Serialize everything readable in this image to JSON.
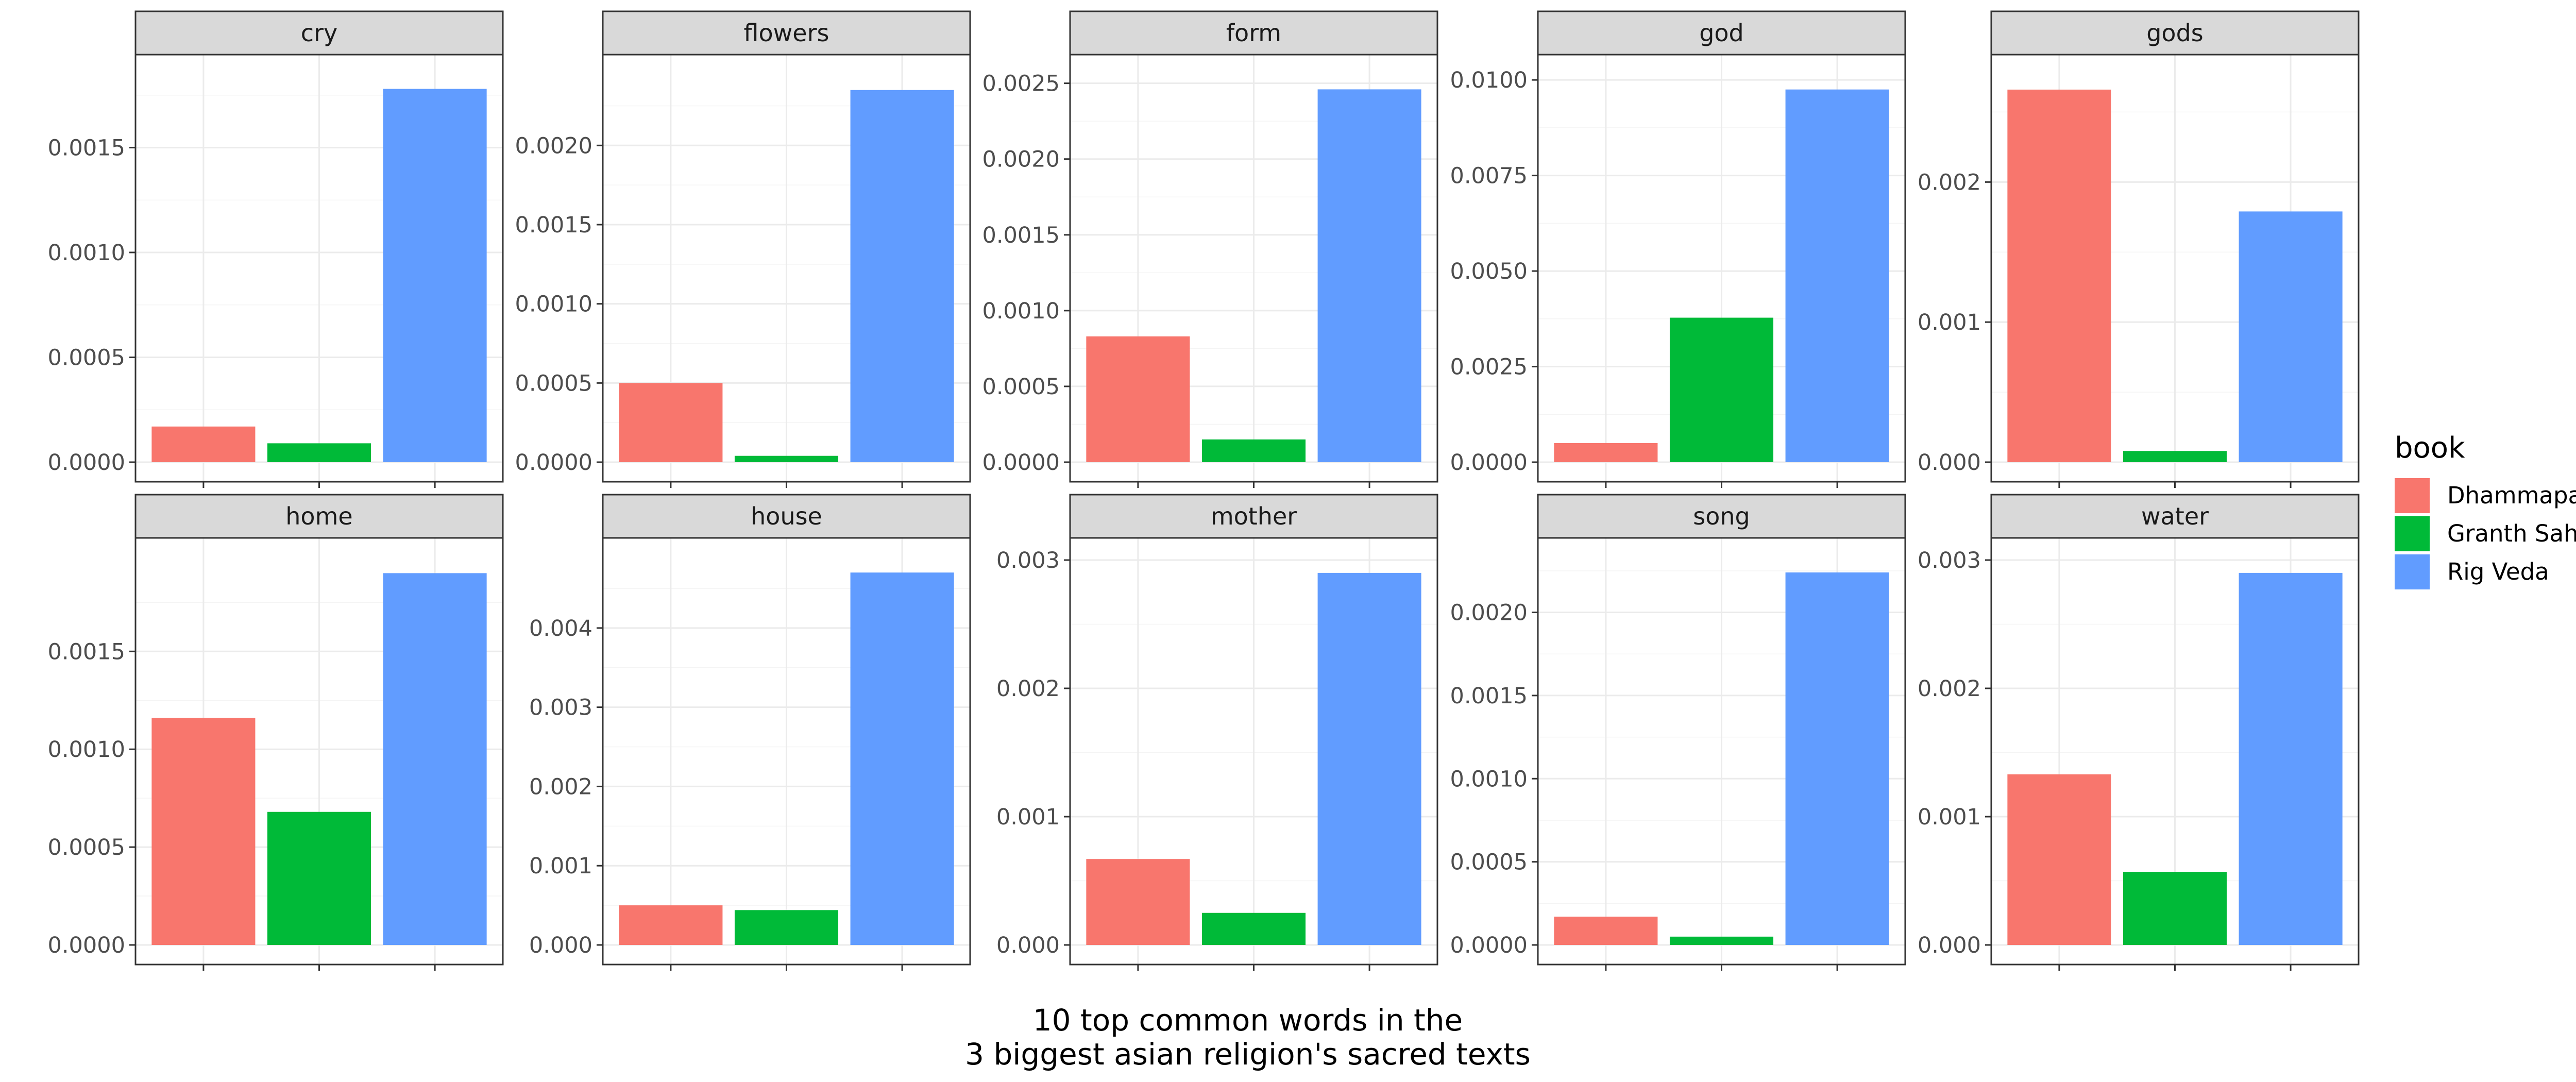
{
  "chart_data": {
    "type": "bar",
    "facet_by": "word",
    "facet_layout": {
      "rows": 2,
      "cols": 5
    },
    "scales": "free_y",
    "grid": true,
    "legend": {
      "title": "book",
      "position": "right",
      "entries": [
        "Dhammapada",
        "Granth Sahib",
        "Rig Veda"
      ]
    },
    "colors": {
      "Dhammapada": "#F8766D",
      "Granth Sahib": "#00BA38",
      "Rig Veda": "#619CFF"
    },
    "caption": [
      "10 top common words in the",
      "3 biggest asian religion's sacred texts"
    ],
    "categories": [
      "Dhammapada",
      "Granth Sahib",
      "Rig Veda"
    ],
    "panels": [
      {
        "word": "cry",
        "values": [
          0.00017,
          9e-05,
          0.00178
        ],
        "ylim": [
          0,
          0.00185
        ],
        "ticks": [
          "0.0000",
          "0.0005",
          "0.0010",
          "0.0015"
        ]
      },
      {
        "word": "flowers",
        "values": [
          0.0005,
          4e-05,
          0.00235
        ],
        "ylim": [
          0,
          0.00245
        ],
        "ticks": [
          "0.0000",
          "0.0005",
          "0.0010",
          "0.0015",
          "0.0020"
        ]
      },
      {
        "word": "form",
        "values": [
          0.00083,
          0.00015,
          0.00246
        ],
        "ylim": [
          0,
          0.00256
        ],
        "ticks": [
          "0.0000",
          "0.0005",
          "0.0010",
          "0.0015",
          "0.0020",
          "0.0025"
        ]
      },
      {
        "word": "god",
        "values": [
          0.0005,
          0.00378,
          0.00975
        ],
        "ylim": [
          0,
          0.01015
        ],
        "ticks": [
          "0.0000",
          "0.0025",
          "0.0050",
          "0.0075",
          "0.0100"
        ]
      },
      {
        "word": "gods",
        "values": [
          0.00266,
          8e-05,
          0.00179
        ],
        "ylim": [
          0,
          0.00277
        ],
        "ticks": [
          "0.000",
          "0.001",
          "0.002"
        ]
      },
      {
        "word": "home",
        "values": [
          0.00116,
          0.00068,
          0.0019
        ],
        "ylim": [
          0,
          0.00198
        ],
        "ticks": [
          "0.0000",
          "0.0005",
          "0.0010",
          "0.0015"
        ]
      },
      {
        "word": "house",
        "values": [
          0.0005,
          0.00044,
          0.0047
        ],
        "ylim": [
          0,
          0.00489
        ],
        "ticks": [
          "0.000",
          "0.001",
          "0.002",
          "0.003",
          "0.004"
        ]
      },
      {
        "word": "mother",
        "values": [
          0.00067,
          0.00025,
          0.0029
        ],
        "ylim": [
          0,
          0.00302
        ],
        "ticks": [
          "0.000",
          "0.001",
          "0.002",
          "0.003"
        ]
      },
      {
        "word": "song",
        "values": [
          0.00017,
          5e-05,
          0.00224
        ],
        "ylim": [
          0,
          0.00233
        ],
        "ticks": [
          "0.0000",
          "0.0005",
          "0.0010",
          "0.0015",
          "0.0020"
        ]
      },
      {
        "word": "water",
        "values": [
          0.00133,
          0.00057,
          0.0029
        ],
        "ylim": [
          0,
          0.00302
        ],
        "ticks": [
          "0.000",
          "0.001",
          "0.002",
          "0.003"
        ]
      }
    ]
  }
}
